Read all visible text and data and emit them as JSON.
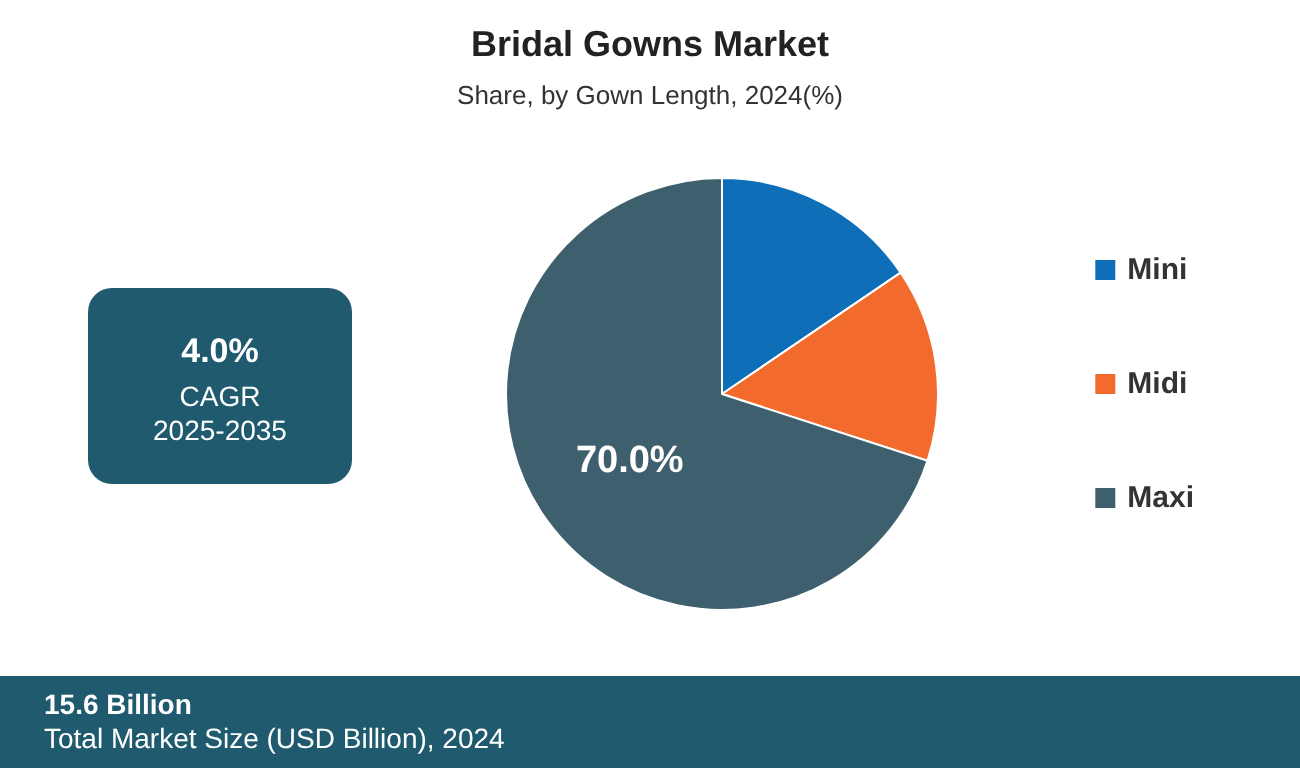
{
  "chart_data": {
    "type": "pie",
    "title": "Bridal Gowns Market",
    "subtitle": "Share, by Gown Length, 2024(%)",
    "categories": [
      "Mini",
      "Midi",
      "Maxi"
    ],
    "values": [
      15.5,
      14.5,
      70.0
    ],
    "colors": [
      "#0f6eb8",
      "#f26a2c",
      "#3e5f6e"
    ],
    "value_labels": [
      null,
      null,
      "70.0%"
    ],
    "legend": "right",
    "annotations": [
      "4.0%",
      "CAGR",
      "2025-2035",
      "15.6 Billion",
      "Total Market Size (USD Billion), 2024"
    ]
  }
}
